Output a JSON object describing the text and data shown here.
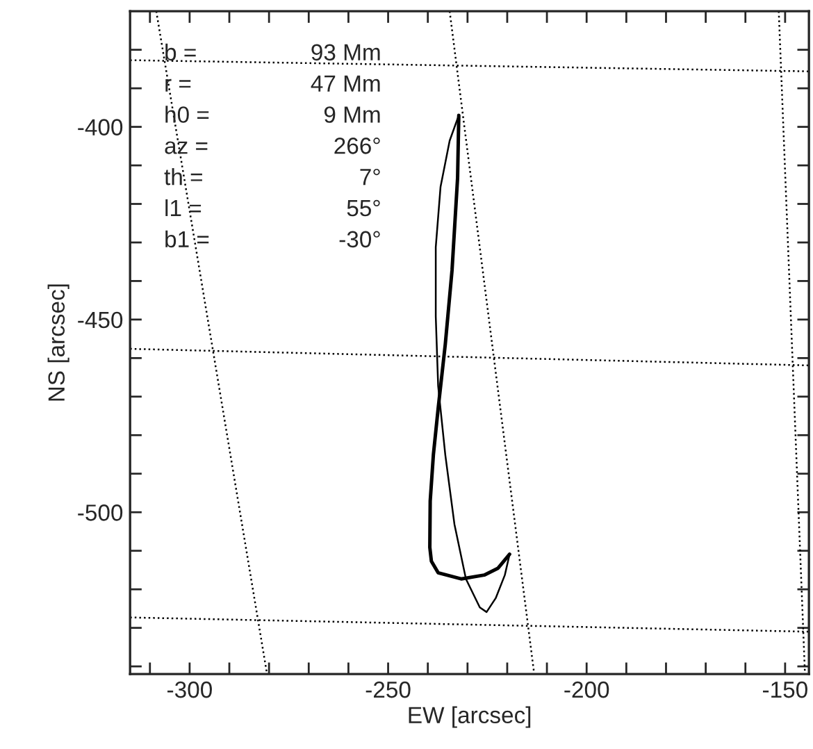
{
  "chart_data": {
    "type": "line",
    "xlabel": "EW [arcsec]",
    "ylabel": "NS [arcsec]",
    "xlim": [
      -315,
      -144
    ],
    "ylim": [
      -542,
      -370
    ],
    "xticks": [
      {
        "value": -310,
        "label": null
      },
      -300,
      {
        "value": -290,
        "label": null
      },
      {
        "value": -280,
        "label": null
      },
      {
        "value": -270,
        "label": null
      },
      {
        "value": -260,
        "label": null
      },
      -250,
      {
        "value": -240,
        "label": null
      },
      {
        "value": -230,
        "label": null
      },
      {
        "value": -220,
        "label": null
      },
      {
        "value": -210,
        "label": null
      },
      -200,
      {
        "value": -190,
        "label": null
      },
      {
        "value": -180,
        "label": null
      },
      {
        "value": -170,
        "label": null
      },
      {
        "value": -160,
        "label": null
      },
      -150
    ],
    "yticks": [
      {
        "value": -380,
        "label": null
      },
      {
        "value": -390,
        "label": null
      },
      -400,
      {
        "value": -410,
        "label": null
      },
      {
        "value": -420,
        "label": null
      },
      {
        "value": -430,
        "label": null
      },
      {
        "value": -440,
        "label": null
      },
      -450,
      {
        "value": -460,
        "label": null
      },
      {
        "value": -470,
        "label": null
      },
      {
        "value": -480,
        "label": null
      },
      {
        "value": -490,
        "label": null
      },
      -500,
      {
        "value": -510,
        "label": null
      },
      {
        "value": -520,
        "label": null
      },
      {
        "value": -530,
        "label": null
      },
      {
        "value": -540,
        "label": null
      }
    ],
    "grid": false,
    "legend": false,
    "marker": "none",
    "series": [
      {
        "color": "#000000",
        "line_style": "solid",
        "x": [
          -232.2,
          -232.5,
          -233.9,
          -235.6,
          -237.4,
          -238.6,
          -239.4,
          -239.5,
          -239.1,
          -237.4,
          -231.6,
          -225.8,
          -222.3,
          -219.4
        ],
        "values": [
          -397,
          -413.2,
          -437.2,
          -456.4,
          -473.1,
          -485.1,
          -497.1,
          -509.1,
          -512.7,
          -515.7,
          -517.3,
          -516.3,
          -514.5,
          -510.9
        ]
      },
      {
        "color": "#000000",
        "line_style": "solid",
        "x": [
          -232.2,
          -234.5,
          -236.8,
          -238.0,
          -238.0,
          -237.4,
          -235.6,
          -233.3,
          -230.4,
          -226.9,
          -225.2,
          -222.9,
          -220.6,
          -219.4
        ],
        "values": [
          -397,
          -403.6,
          -415.6,
          -431.2,
          -449.2,
          -467.2,
          -485.1,
          -503.1,
          -517.3,
          -524.7,
          -525.9,
          -522.3,
          -516.3,
          -510.9
        ]
      },
      {
        "color": "#000000",
        "line_style": "dotted",
        "x": [
          -315,
          -144
        ],
        "values": [
          -382.7,
          -385.6
        ]
      },
      {
        "color": "#000000",
        "line_style": "dotted",
        "x": [
          -315,
          -144
        ],
        "values": [
          -457.6,
          -461.9
        ]
      },
      {
        "color": "#000000",
        "line_style": "dotted",
        "x": [
          -315,
          -144
        ],
        "values": [
          -527.3,
          -531
        ]
      },
      {
        "color": "#000000",
        "line_style": "dotted",
        "x": [
          -308.4,
          -280.5
        ],
        "values": [
          -370,
          -542
        ]
      },
      {
        "color": "#000000",
        "line_style": "dotted",
        "x": [
          -234.5,
          -213.2
        ],
        "values": [
          -370,
          -542
        ]
      },
      {
        "color": "#000000",
        "line_style": "dotted",
        "x": [
          -151.6,
          -145.0
        ],
        "values": [
          -370,
          -542
        ]
      }
    ],
    "annotations": [
      "b =",
      "93 Mm",
      "r =",
      "47 Mm",
      "h0 =",
      "9 Mm",
      "az =",
      "266°",
      "th =",
      "7°",
      "l1 =",
      "55°",
      "b1 =",
      "-30°"
    ]
  }
}
